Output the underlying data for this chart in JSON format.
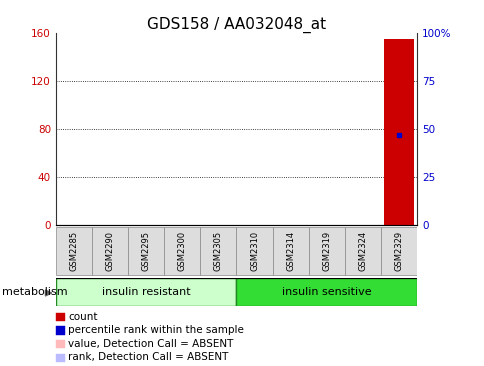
{
  "title": "GDS158 / AA032048_at",
  "samples": [
    "GSM2285",
    "GSM2290",
    "GSM2295",
    "GSM2300",
    "GSM2305",
    "GSM2310",
    "GSM2314",
    "GSM2319",
    "GSM2324",
    "GSM2329"
  ],
  "bar_values": [
    0,
    0,
    0,
    0,
    0,
    0,
    0,
    0,
    0,
    155
  ],
  "bar_color": "#cc0000",
  "rank_values": [
    null,
    null,
    null,
    null,
    null,
    null,
    null,
    null,
    null,
    47
  ],
  "rank_color": "#0000cc",
  "ylim_left": [
    0,
    160
  ],
  "ylim_right": [
    0,
    100
  ],
  "yticks_left": [
    0,
    40,
    80,
    120,
    160
  ],
  "yticks_right": [
    0,
    25,
    50,
    75,
    100
  ],
  "ytick_labels_right": [
    "0",
    "25",
    "50",
    "75",
    "100%"
  ],
  "group1_label": "insulin resistant",
  "group2_label": "insulin sensitive",
  "group1_indices": [
    0,
    1,
    2,
    3,
    4
  ],
  "group2_indices": [
    5,
    6,
    7,
    8,
    9
  ],
  "group1_color": "#ccffcc",
  "group2_color": "#33dd33",
  "metabolism_label": "metabolism",
  "legend_items": [
    {
      "color": "#cc0000",
      "label": "count"
    },
    {
      "color": "#0000cc",
      "label": "percentile rank within the sample"
    },
    {
      "color": "#ffbbbb",
      "label": "value, Detection Call = ABSENT"
    },
    {
      "color": "#bbbbff",
      "label": "rank, Detection Call = ABSENT"
    }
  ],
  "title_fontsize": 11,
  "tick_fontsize": 7.5,
  "legend_fontsize": 7.5,
  "group_label_fontsize": 8,
  "metabolism_fontsize": 8,
  "background_color": "#ffffff",
  "left_tick_color": "#cc0000",
  "right_tick_color": "#0000cc",
  "grid_yticks": [
    40,
    80,
    120
  ]
}
